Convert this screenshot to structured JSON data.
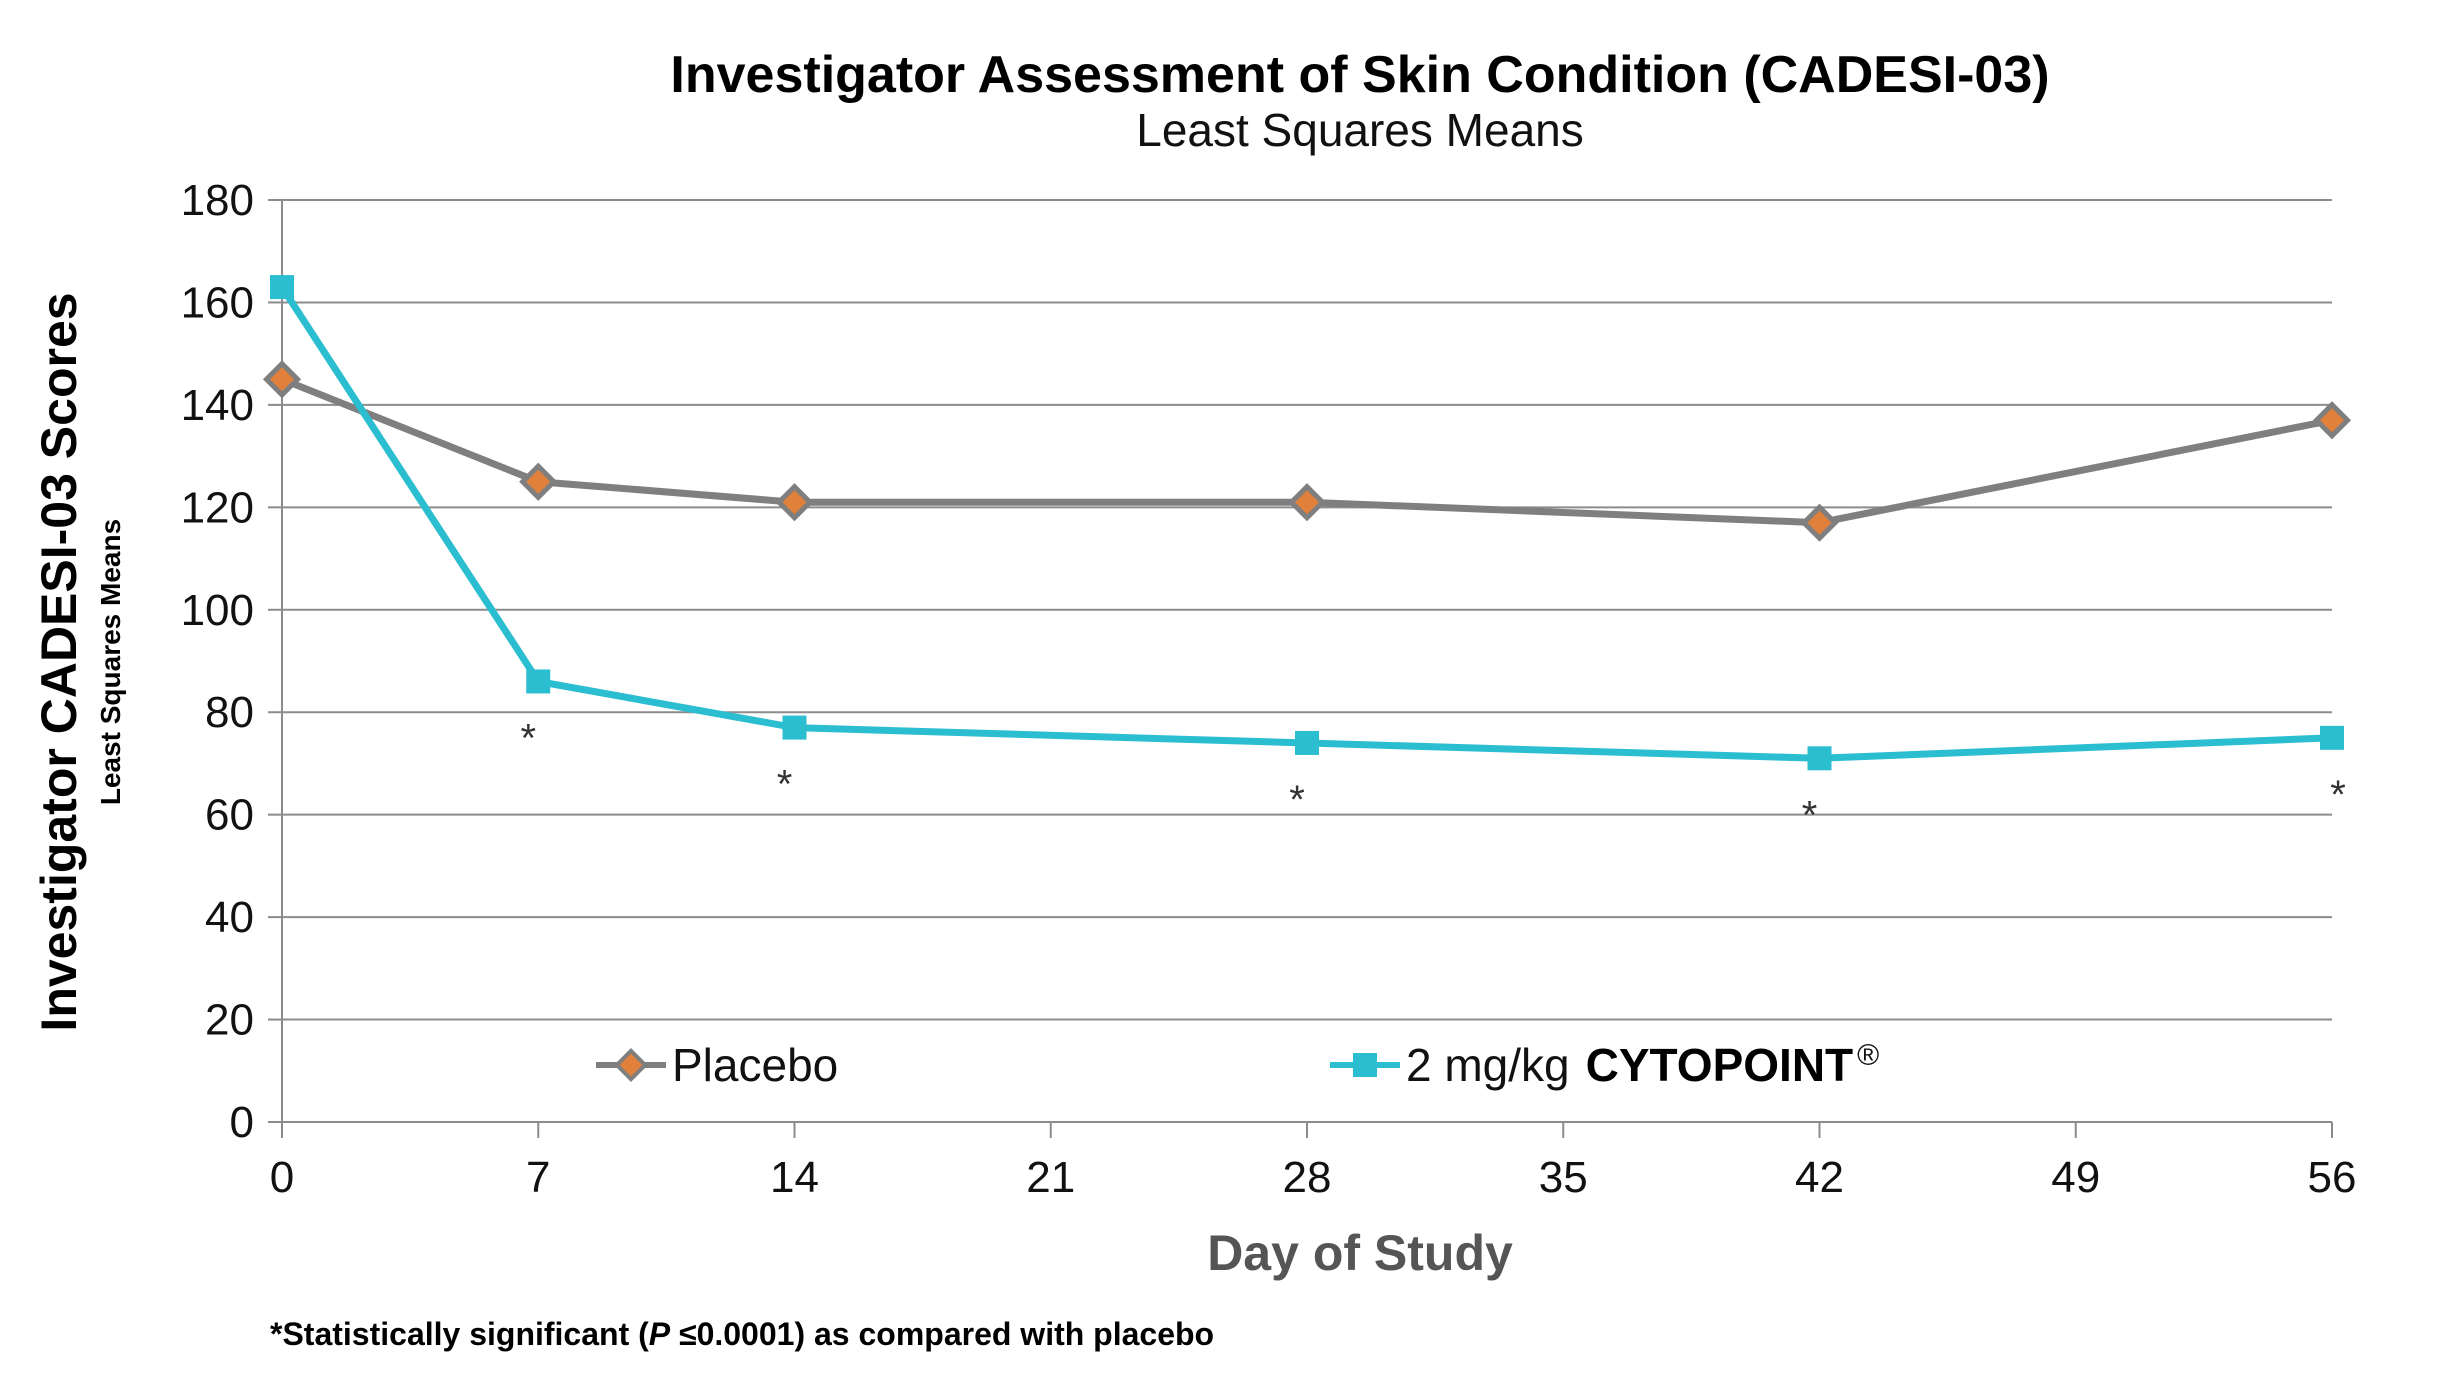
{
  "chart_data": {
    "type": "line",
    "title": "Investigator Assessment of Skin Condition (CADESI-03)",
    "subtitle": "Least Squares Means",
    "ylabel": "Investigator CADESI-03 Scores",
    "ylabel_sub": "Least Squares Means",
    "xlabel": "Day of Study",
    "ylim": [
      0,
      180
    ],
    "yticks": [
      "0",
      "20",
      "40",
      "60",
      "80",
      "100",
      "120",
      "140",
      "160",
      "180"
    ],
    "xlim": [
      0,
      56
    ],
    "xticks": [
      "0",
      "7",
      "14",
      "21",
      "28",
      "35",
      "42",
      "49",
      "56"
    ],
    "grid": true,
    "series": [
      {
        "name": "Placebo",
        "color": "#7f7f7f",
        "marker_fill": "#e0803a",
        "marker": "diamond",
        "x": [
          0,
          7,
          14,
          28,
          42,
          56
        ],
        "values": [
          145,
          125,
          121,
          121,
          117,
          137
        ]
      },
      {
        "name": "2 mg/kg",
        "brand": "CYTOPOINT",
        "brand_mark": "®",
        "color": "#2bbdd0",
        "marker": "square",
        "x": [
          0,
          7,
          14,
          28,
          42,
          56
        ],
        "values": [
          163,
          86,
          77,
          74,
          71,
          75
        ],
        "significance_marker": "*",
        "significant_at": [
          7,
          14,
          28,
          42,
          56
        ]
      }
    ],
    "legend_position": "bottom-inside",
    "footnote_parts": {
      "pre": "*Statistically significant (",
      "p": "P",
      "post": " ≤0.0001) as compared with placebo"
    }
  }
}
